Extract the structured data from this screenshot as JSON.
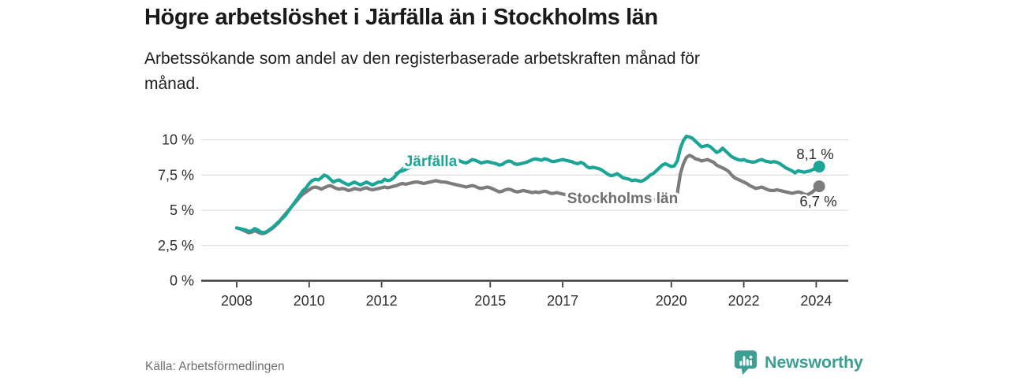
{
  "header": {
    "title": "Högre arbetslöshet i Järfälla än i Stockholms län",
    "subtitle_line1": "Arbetssökande som andel av den registerbaserade arbetskraften månad för",
    "subtitle_line2": "månad."
  },
  "footer": {
    "source": "Källa: Arbetsförmedlingen",
    "brand": "Newsworthy",
    "brand_color": "#3d9e94"
  },
  "chart_data": {
    "type": "line",
    "title": "Högre arbetslöshet i Järfälla än i Stockholms län",
    "subtitle": "Arbetssökande som andel av den registerbaserade arbetskraften månad för månad.",
    "source": "Källa: Arbetsförmedlingen",
    "unit": "%",
    "x_unit": "month",
    "x_start": "2008-01",
    "x_end": "2024-02",
    "xlabel": "",
    "ylabel": "",
    "ylim": [
      0,
      10.8
    ],
    "grid": "horizontal",
    "legend_position": "inline-labels",
    "x_ticks": [
      {
        "year": 2008,
        "label": "2008"
      },
      {
        "year": 2010,
        "label": "2010"
      },
      {
        "year": 2012,
        "label": "2012"
      },
      {
        "year": 2015,
        "label": "2015"
      },
      {
        "year": 2017,
        "label": "2017"
      },
      {
        "year": 2020,
        "label": "2020"
      },
      {
        "year": 2022,
        "label": "2022"
      },
      {
        "year": 2024,
        "label": "2024"
      }
    ],
    "y_ticks": [
      {
        "value": 0,
        "label": "0 %"
      },
      {
        "value": 2.5,
        "label": "2,5 %"
      },
      {
        "value": 5,
        "label": "5 %"
      },
      {
        "value": 7.5,
        "label": "7,5 %"
      },
      {
        "value": 10,
        "label": "10 %"
      }
    ],
    "series": [
      {
        "name": "Järfälla",
        "color": "#1ba596",
        "end_label": "8,1 %",
        "end_value": 8.1,
        "values": [
          3.75,
          3.7,
          3.65,
          3.6,
          3.5,
          3.55,
          3.7,
          3.6,
          3.45,
          3.4,
          3.5,
          3.65,
          3.8,
          4.0,
          4.2,
          4.4,
          4.6,
          4.9,
          5.2,
          5.5,
          5.8,
          6.1,
          6.4,
          6.6,
          6.9,
          7.1,
          7.2,
          7.15,
          7.3,
          7.5,
          7.4,
          7.2,
          7.0,
          7.1,
          7.15,
          7.0,
          6.9,
          6.8,
          6.9,
          7.0,
          6.9,
          6.8,
          6.9,
          7.0,
          6.9,
          6.8,
          6.9,
          7.0,
          7.0,
          7.2,
          7.1,
          7.15,
          7.3,
          7.55,
          7.75,
          7.8,
          7.9,
          8.0,
          8.1,
          8.2,
          8.3,
          8.4,
          8.45,
          8.4,
          8.3,
          8.4,
          8.55,
          8.6,
          8.5,
          8.4,
          8.45,
          8.5,
          8.55,
          8.6,
          8.5,
          8.4,
          8.35,
          8.45,
          8.6,
          8.55,
          8.45,
          8.35,
          8.4,
          8.45,
          8.4,
          8.35,
          8.3,
          8.2,
          8.25,
          8.4,
          8.5,
          8.45,
          8.3,
          8.25,
          8.3,
          8.35,
          8.4,
          8.5,
          8.6,
          8.65,
          8.6,
          8.55,
          8.65,
          8.6,
          8.5,
          8.45,
          8.5,
          8.55,
          8.6,
          8.55,
          8.5,
          8.45,
          8.35,
          8.3,
          8.4,
          8.3,
          8.1,
          8.0,
          8.05,
          8.0,
          7.95,
          7.85,
          7.7,
          7.55,
          7.45,
          7.5,
          7.6,
          7.45,
          7.3,
          7.25,
          7.2,
          7.1,
          7.15,
          7.1,
          7.05,
          7.15,
          7.3,
          7.5,
          7.6,
          7.8,
          8.0,
          8.2,
          8.3,
          8.2,
          8.1,
          8.15,
          8.5,
          9.4,
          9.95,
          10.25,
          10.2,
          10.1,
          9.9,
          9.7,
          9.5,
          9.55,
          9.6,
          9.5,
          9.3,
          9.1,
          9.2,
          9.4,
          9.2,
          9.0,
          8.8,
          8.7,
          8.6,
          8.55,
          8.6,
          8.5,
          8.45,
          8.4,
          8.45,
          8.55,
          8.6,
          8.5,
          8.45,
          8.4,
          8.45,
          8.4,
          8.3,
          8.15,
          8.0,
          7.9,
          7.8,
          7.65,
          7.8,
          7.75,
          7.7,
          7.75,
          7.8,
          7.9,
          8.0,
          8.1
        ]
      },
      {
        "name": "Stockholms län",
        "color": "#7c7c7c",
        "end_label": "6,7 %",
        "end_value": 6.7,
        "values": [
          3.75,
          3.7,
          3.6,
          3.5,
          3.4,
          3.45,
          3.55,
          3.45,
          3.35,
          3.35,
          3.45,
          3.6,
          3.75,
          3.95,
          4.15,
          4.45,
          4.7,
          4.95,
          5.2,
          5.45,
          5.7,
          5.95,
          6.15,
          6.3,
          6.45,
          6.6,
          6.65,
          6.6,
          6.5,
          6.6,
          6.7,
          6.75,
          6.65,
          6.55,
          6.5,
          6.55,
          6.5,
          6.4,
          6.45,
          6.55,
          6.5,
          6.45,
          6.55,
          6.6,
          6.5,
          6.45,
          6.5,
          6.55,
          6.6,
          6.65,
          6.6,
          6.65,
          6.7,
          6.75,
          6.85,
          6.9,
          6.85,
          6.9,
          6.95,
          7.0,
          7.0,
          6.95,
          6.9,
          6.95,
          7.0,
          7.05,
          7.1,
          7.05,
          7.0,
          7.0,
          6.95,
          6.9,
          6.85,
          6.8,
          6.75,
          6.7,
          6.65,
          6.7,
          6.75,
          6.7,
          6.6,
          6.55,
          6.6,
          6.65,
          6.6,
          6.5,
          6.4,
          6.3,
          6.35,
          6.45,
          6.5,
          6.45,
          6.35,
          6.3,
          6.35,
          6.4,
          6.35,
          6.3,
          6.25,
          6.3,
          6.25,
          6.3,
          6.35,
          6.3,
          6.2,
          6.2,
          6.25,
          6.2,
          6.15,
          6.1,
          6.05,
          6.0,
          5.95,
          6.0,
          6.1,
          6.05,
          5.95,
          5.9,
          5.9,
          5.85,
          5.8,
          5.75,
          5.7,
          5.65,
          5.6,
          5.65,
          5.75,
          5.7,
          5.6,
          5.5,
          5.45,
          5.5,
          5.55,
          5.5,
          5.45,
          5.5,
          5.55,
          5.65,
          5.75,
          5.7,
          5.6,
          5.55,
          5.5,
          5.45,
          5.5,
          5.6,
          6.2,
          7.6,
          8.3,
          8.75,
          8.9,
          8.8,
          8.65,
          8.6,
          8.5,
          8.55,
          8.6,
          8.5,
          8.4,
          8.2,
          8.1,
          8.0,
          7.9,
          7.75,
          7.5,
          7.3,
          7.2,
          7.1,
          7.0,
          6.9,
          6.75,
          6.65,
          6.55,
          6.6,
          6.65,
          6.55,
          6.45,
          6.4,
          6.4,
          6.45,
          6.4,
          6.35,
          6.3,
          6.25,
          6.2,
          6.25,
          6.3,
          6.25,
          6.15,
          6.1,
          6.2,
          6.35,
          6.55,
          6.7
        ]
      }
    ]
  }
}
